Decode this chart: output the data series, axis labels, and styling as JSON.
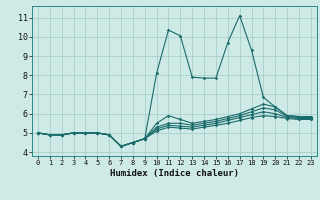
{
  "xlabel": "Humidex (Indice chaleur)",
  "bg_color": "#ceeae6",
  "line_color": "#1a6b6b",
  "grid_color": "#aacfcb",
  "xlim": [
    -0.5,
    23.5
  ],
  "ylim": [
    3.8,
    11.6
  ],
  "yticks": [
    4,
    5,
    6,
    7,
    8,
    9,
    10,
    11
  ],
  "xticks": [
    0,
    1,
    2,
    3,
    4,
    5,
    6,
    7,
    8,
    9,
    10,
    11,
    12,
    13,
    14,
    15,
    16,
    17,
    18,
    19,
    20,
    21,
    22,
    23
  ],
  "lines": [
    [
      5.0,
      4.9,
      4.9,
      5.0,
      5.0,
      5.0,
      4.9,
      4.3,
      4.5,
      4.7,
      8.1,
      10.35,
      10.05,
      7.9,
      7.85,
      7.85,
      9.7,
      11.1,
      9.3,
      6.85,
      6.35,
      5.9,
      5.85,
      5.85
    ],
    [
      5.0,
      4.9,
      4.9,
      5.0,
      5.0,
      5.0,
      4.9,
      4.3,
      4.5,
      4.7,
      5.5,
      5.9,
      5.7,
      5.5,
      5.6,
      5.7,
      5.85,
      6.0,
      6.25,
      6.5,
      6.35,
      5.9,
      5.85,
      5.85
    ],
    [
      5.0,
      4.9,
      4.9,
      5.0,
      5.0,
      5.0,
      4.9,
      4.3,
      4.5,
      4.7,
      5.3,
      5.5,
      5.5,
      5.4,
      5.5,
      5.6,
      5.75,
      5.9,
      6.1,
      6.3,
      6.2,
      5.85,
      5.8,
      5.8
    ],
    [
      5.0,
      4.9,
      4.9,
      5.0,
      5.0,
      5.0,
      4.9,
      4.3,
      4.5,
      4.7,
      5.2,
      5.4,
      5.35,
      5.3,
      5.4,
      5.5,
      5.65,
      5.8,
      5.95,
      6.1,
      6.0,
      5.8,
      5.75,
      5.75
    ],
    [
      5.0,
      4.9,
      4.9,
      5.0,
      5.0,
      5.0,
      4.9,
      4.3,
      4.5,
      4.7,
      5.1,
      5.3,
      5.25,
      5.2,
      5.3,
      5.4,
      5.5,
      5.65,
      5.8,
      5.9,
      5.85,
      5.75,
      5.7,
      5.7
    ]
  ]
}
